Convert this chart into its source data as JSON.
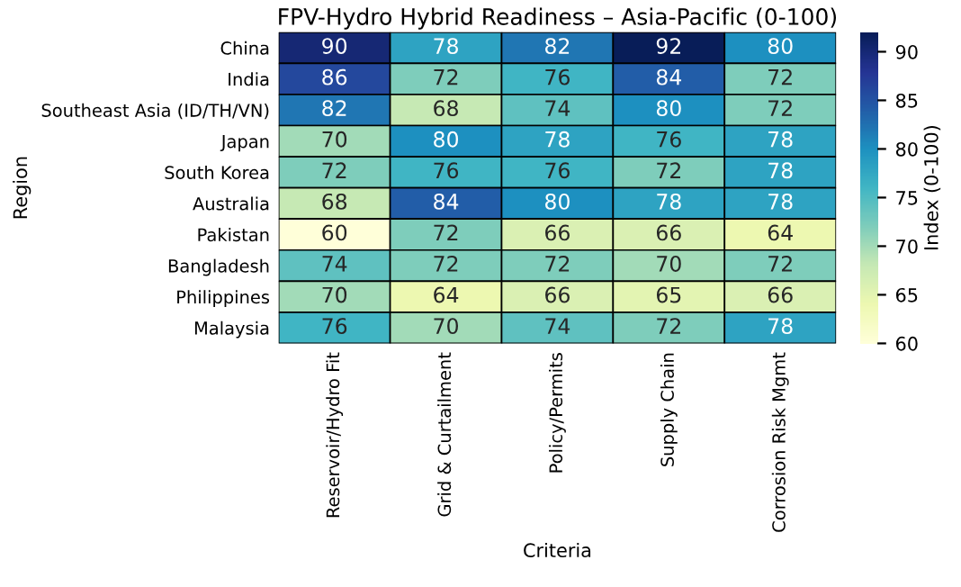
{
  "chart_data": {
    "type": "heatmap",
    "title": "FPV-Hydro Hybrid Readiness – Asia-Pacific (0-100)",
    "xlabel": "Criteria",
    "ylabel": "Region",
    "clabel": "Index (0-100)",
    "categories": [
      "Reservoir/Hydro Fit",
      "Grid & Curtailment",
      "Policy/Permits",
      "Supply Chain",
      "Corrosion Risk Mgmt"
    ],
    "y_categories": [
      "China",
      "India",
      "Southeast Asia (ID/TH/VN)",
      "Japan",
      "South Korea",
      "Australia",
      "Pakistan",
      "Bangladesh",
      "Philippines",
      "Malaysia"
    ],
    "cells": [
      [
        90,
        78,
        82,
        92,
        80
      ],
      [
        86,
        72,
        76,
        84,
        72
      ],
      [
        82,
        68,
        74,
        80,
        72
      ],
      [
        70,
        80,
        78,
        76,
        78
      ],
      [
        72,
        76,
        76,
        72,
        78
      ],
      [
        68,
        84,
        80,
        78,
        78
      ],
      [
        60,
        72,
        66,
        66,
        64
      ],
      [
        74,
        72,
        72,
        70,
        72
      ],
      [
        70,
        64,
        66,
        65,
        66
      ],
      [
        76,
        70,
        74,
        72,
        78
      ]
    ],
    "data_labels": true,
    "clim": [
      60,
      92
    ],
    "cticks": [
      60,
      65,
      70,
      75,
      80,
      85,
      90
    ]
  }
}
